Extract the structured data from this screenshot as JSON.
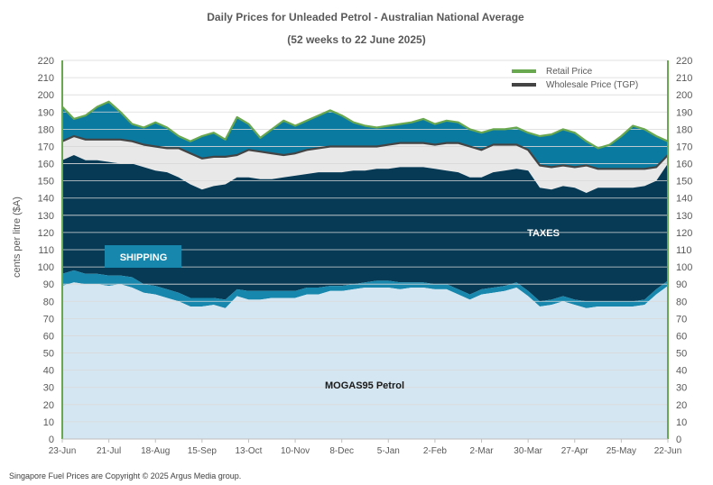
{
  "chart_data": {
    "type": "area",
    "title": "Daily  Prices for Unleaded  Petrol  - Australian  National  Average",
    "subtitle": "(52 weeks to 22 June 2025)",
    "ylabel": "cents per litre ($A)",
    "xlabel": "",
    "ylim": [
      0,
      220
    ],
    "yticks": [
      0,
      10,
      20,
      30,
      40,
      50,
      60,
      70,
      80,
      90,
      100,
      110,
      120,
      130,
      140,
      150,
      160,
      170,
      180,
      190,
      200,
      210,
      220
    ],
    "xtick_labels": [
      "23-Jun",
      "21-Jul",
      "18-Aug",
      "15-Sep",
      "13-Oct",
      "10-Nov",
      "8-Dec",
      "5-Jan",
      "2-Feb",
      "2-Mar",
      "30-Mar",
      "27-Apr",
      "25-May",
      "22-Jun"
    ],
    "grid": true,
    "legend_position": "top-right",
    "legend": [
      {
        "name": "Retail Price",
        "color": "#6aa84f"
      },
      {
        "name": "Wholesale Price (TGP)",
        "color": "#444444"
      }
    ],
    "annotations": [
      "SHIPPING",
      "TAXES",
      "MOGAS95 Petrol"
    ],
    "colors": {
      "mogas": "#d4e6f1",
      "shipping": "#1787ad",
      "taxes": "#063a55",
      "wholesale_margin": "#e8e8e8",
      "retail_margin": "#0a7aa1",
      "retail_line": "#6aa84f",
      "wholesale_line": "#444444",
      "shipping_label_bg": "#1787ad"
    },
    "week_index": [
      0,
      1,
      2,
      3,
      4,
      5,
      6,
      7,
      8,
      9,
      10,
      11,
      12,
      13,
      14,
      15,
      16,
      17,
      18,
      19,
      20,
      21,
      22,
      23,
      24,
      25,
      26,
      27,
      28,
      29,
      30,
      31,
      32,
      33,
      34,
      35,
      36,
      37,
      38,
      39,
      40,
      41,
      42,
      43,
      44,
      45,
      46,
      47,
      48,
      49,
      50,
      51,
      52
    ],
    "series": [
      {
        "name": "MOGAS95 Petrol",
        "values": [
          89,
          91,
          90,
          90,
          89,
          90,
          88,
          85,
          84,
          82,
          80,
          77,
          77,
          78,
          76,
          83,
          81,
          81,
          82,
          82,
          82,
          84,
          84,
          86,
          86,
          87,
          88,
          88,
          88,
          87,
          88,
          88,
          87,
          87,
          84,
          81,
          84,
          85,
          86,
          88,
          83,
          77,
          78,
          80,
          78,
          76,
          77,
          77,
          77,
          77,
          78,
          84,
          89
        ]
      },
      {
        "name": "Shipping",
        "values": [
          96,
          98,
          96,
          96,
          95,
          95,
          94,
          90,
          89,
          87,
          85,
          82,
          82,
          82,
          81,
          87,
          86,
          86,
          86,
          86,
          86,
          88,
          88,
          89,
          89,
          90,
          91,
          92,
          92,
          91,
          91,
          91,
          90,
          90,
          87,
          84,
          87,
          88,
          89,
          91,
          86,
          80,
          81,
          83,
          81,
          80,
          80,
          80,
          80,
          80,
          81,
          87,
          92
        ]
      },
      {
        "name": "Wholesale Price (TGP)",
        "values": [
          173,
          176,
          174,
          174,
          174,
          174,
          173,
          171,
          170,
          169,
          169,
          166,
          163,
          164,
          164,
          165,
          168,
          167,
          166,
          165,
          166,
          168,
          169,
          170,
          170,
          170,
          170,
          170,
          171,
          172,
          172,
          172,
          171,
          172,
          172,
          170,
          168,
          171,
          171,
          171,
          168,
          159,
          158,
          159,
          158,
          159,
          157,
          157,
          157,
          157,
          157,
          158,
          165
        ]
      },
      {
        "name": "Retail Price",
        "values": [
          193,
          186,
          188,
          193,
          196,
          190,
          183,
          181,
          184,
          181,
          176,
          173,
          176,
          178,
          174,
          187,
          183,
          175,
          180,
          185,
          182,
          185,
          188,
          191,
          188,
          184,
          182,
          181,
          182,
          183,
          184,
          186,
          183,
          185,
          184,
          180,
          178,
          180,
          180,
          181,
          178,
          176,
          177,
          180,
          178,
          173,
          169,
          171,
          176,
          182,
          180,
          176,
          173
        ]
      }
    ],
    "taxes_top": [
      162,
      165,
      162,
      162,
      161,
      160,
      160,
      158,
      156,
      155,
      152,
      148,
      145,
      147,
      148,
      152,
      152,
      151,
      151,
      152,
      153,
      154,
      155,
      155,
      155,
      156,
      156,
      157,
      157,
      158,
      158,
      158,
      157,
      156,
      155,
      152,
      152,
      155,
      156,
      157,
      156,
      146,
      145,
      147,
      146,
      143,
      146,
      146,
      146,
      146,
      147,
      150,
      160
    ]
  },
  "footer": {
    "copyright": "Singapore  Fuel Prices are  Copyright © 2025 Argus Media group."
  }
}
